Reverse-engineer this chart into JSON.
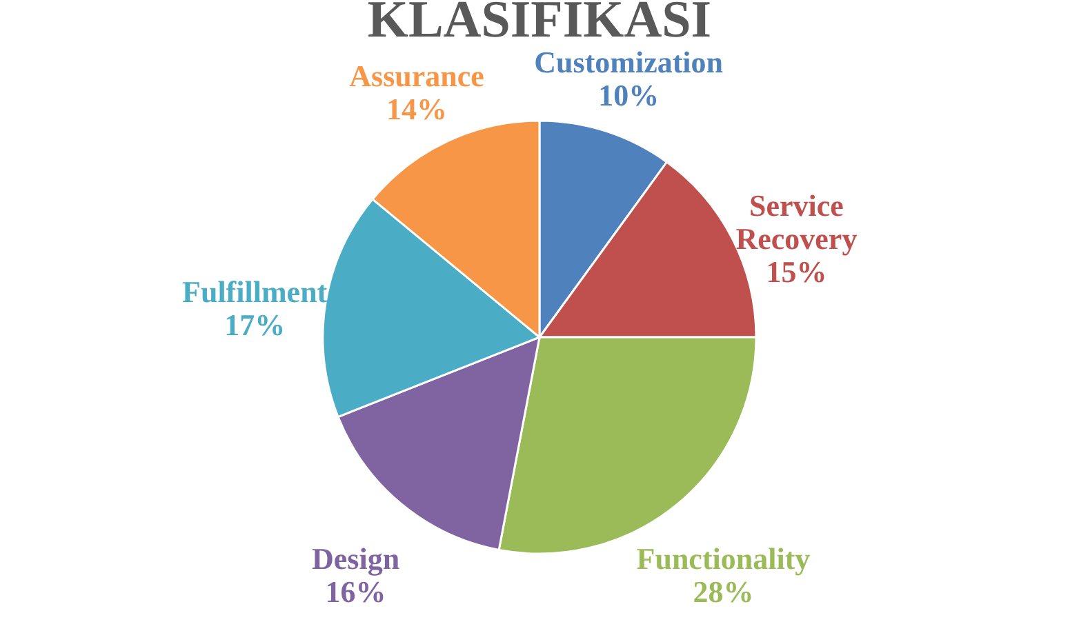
{
  "chart_data": {
    "type": "pie",
    "title": "KLASIFIKASI",
    "categories": [
      "Customization",
      "Service Recovery",
      "Functionality",
      "Design",
      "Fulfillment",
      "Assurance"
    ],
    "values": [
      10,
      15,
      28,
      16,
      17,
      14
    ],
    "value_labels": [
      "10%",
      "15%",
      "28%",
      "16%",
      "17%",
      "14%"
    ],
    "colors": [
      "#4f81bd",
      "#c0504d",
      "#9bbb59",
      "#8064a2",
      "#4bacc6",
      "#f79646"
    ],
    "legend": false
  }
}
